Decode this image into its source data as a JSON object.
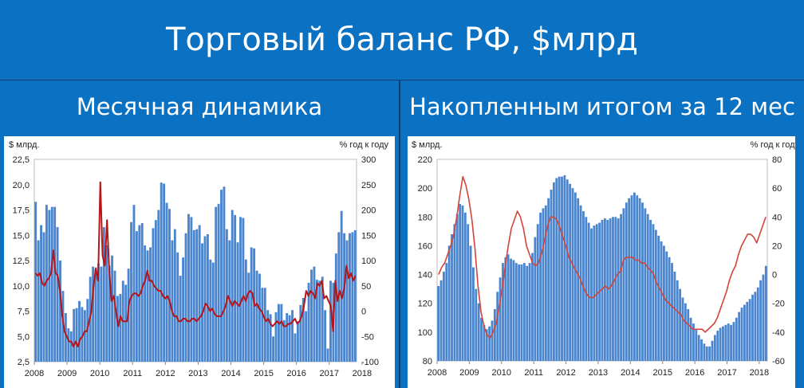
{
  "title": "Торговый баланс РФ, $млрд",
  "panels": [
    {
      "heading": "Месячная динамика"
    },
    {
      "heading": "Накопленным итогом за 12 мес"
    }
  ],
  "colors": {
    "banner": "#0b71c2",
    "bars": "#4a86cf",
    "line_left": "#b81417",
    "line_right": "#d3443a"
  },
  "chart_data": [
    {
      "type": "bar",
      "combo": "bar + line (secondary axis)",
      "left_unit": "$ млрд.",
      "right_unit": "% год к году",
      "y_ticks": [
        "22,5",
        "20,0",
        "17,5",
        "15,0",
        "12,5",
        "10,0",
        "7,5",
        "5,0",
        "2,5"
      ],
      "y2_ticks": [
        "300",
        "250",
        "200",
        "150",
        "100",
        "50",
        "0",
        "-50",
        "-100"
      ],
      "ylim": [
        2.5,
        22.5
      ],
      "y2lim": [
        -100,
        300
      ],
      "x_ticks": [
        "2008",
        "2009",
        "2010",
        "2011",
        "2012",
        "2013",
        "2014",
        "2015",
        "2016",
        "2017",
        "2018"
      ],
      "series": [
        {
          "kind": "bar",
          "values": [
            18.3,
            14.5,
            16.0,
            15.3,
            18.0,
            17.5,
            17.8,
            17.8,
            15.8,
            12.5,
            9.5,
            7.3,
            5.8,
            5.5,
            7.7,
            7.8,
            8.5,
            7.9,
            7.6,
            8.7,
            10.9,
            11.9,
            11.7,
            12.2,
            11.9,
            15.8,
            14.0,
            12.0,
            13.0,
            11.5,
            9.0,
            9.2,
            10.5,
            10.1,
            11.7,
            16.3,
            18.0,
            15.4,
            16.0,
            16.2,
            14.0,
            13.5,
            13.8,
            15.7,
            16.5,
            17.5,
            20.2,
            20.1,
            18.2,
            17.6,
            14.5,
            15.6,
            13.3,
            11.0,
            12.8,
            15.2,
            17.1,
            16.8,
            15.5,
            15.6,
            16.0,
            14.2,
            14.9,
            15.1,
            12.6,
            12.3,
            17.8,
            18.1,
            19.5,
            19.8,
            15.6,
            14.5,
            17.5,
            17.0,
            14.3,
            16.8,
            16.7,
            12.6,
            11.3,
            13.8,
            13.7,
            11.5,
            11.2,
            9.8,
            9.8,
            7.6,
            7.2,
            5.0,
            7.4,
            8.2,
            8.2,
            6.6,
            7.3,
            7.1,
            7.6,
            5.3,
            6.5,
            8.1,
            8.8,
            7.5,
            10.3,
            11.6,
            11.9,
            10.6,
            10.5,
            10.9,
            7.6,
            3.8,
            10.5,
            10.3,
            13.2,
            15.3,
            17.4,
            15.2,
            14.5,
            15.2,
            15.3,
            15.5
          ]
        },
        {
          "kind": "line",
          "axis": "right",
          "values": [
            75,
            70,
            75,
            55,
            50,
            60,
            65,
            75,
            120,
            75,
            70,
            40,
            -10,
            -40,
            -50,
            -60,
            -60,
            -70,
            -60,
            -70,
            -55,
            -50,
            -40,
            -40,
            -20,
            0,
            50,
            85,
            60,
            255,
            110,
            90,
            180,
            80,
            20,
            30,
            0,
            -30,
            -10,
            -20,
            -20,
            -20,
            20,
            30,
            35,
            35,
            30,
            35,
            50,
            60,
            80,
            60,
            60,
            50,
            45,
            40,
            40,
            30,
            25,
            30,
            20,
            0,
            -10,
            -10,
            -20,
            -20,
            -15,
            -15,
            -20,
            -20,
            -15,
            -15,
            -20,
            -15,
            -10,
            0,
            15,
            10,
            0,
            5,
            -5,
            -10,
            -10,
            -10,
            0,
            10,
            30,
            20,
            10,
            20,
            15,
            10,
            20,
            30,
            20,
            35,
            40,
            35,
            10,
            15,
            5,
            0,
            -10,
            -20,
            -15,
            -25,
            -30,
            -25,
            -20,
            -25,
            -20,
            -30,
            -30,
            -25,
            -25,
            -20,
            -15,
            -25,
            -20,
            -10,
            10,
            40,
            30,
            40,
            35,
            25,
            55,
            50,
            60,
            25,
            30,
            20,
            10,
            -40,
            60,
            20,
            40,
            25,
            45,
            90,
            65,
            75,
            60,
            70
          ]
        }
      ]
    },
    {
      "type": "bar",
      "combo": "bar + line (secondary axis)",
      "left_unit": "$ млрд.",
      "right_unit": "% год к году",
      "y_ticks": [
        "220",
        "200",
        "180",
        "160",
        "140",
        "120",
        "100",
        "80"
      ],
      "y2_ticks": [
        "80",
        "60",
        "40",
        "20",
        "0",
        "-20",
        "-40",
        "-60"
      ],
      "ylim": [
        80,
        220
      ],
      "y2lim": [
        -60,
        80
      ],
      "x_ticks": [
        "2008",
        "2009",
        "2010",
        "2011",
        "2012",
        "2013",
        "2014",
        "2015",
        "2016",
        "2017",
        "2018"
      ],
      "series": [
        {
          "kind": "bar",
          "values": [
            132,
            136,
            142,
            148,
            160,
            168,
            175,
            182,
            189,
            188,
            183,
            175,
            160,
            145,
            130,
            120,
            110,
            105,
            102,
            104,
            108,
            116,
            128,
            138,
            148,
            152,
            154,
            151,
            150,
            148,
            147,
            147,
            148,
            146,
            148,
            155,
            166,
            175,
            183,
            186,
            188,
            193,
            199,
            204,
            207,
            208,
            208,
            209,
            206,
            203,
            200,
            197,
            193,
            188,
            184,
            180,
            176,
            172,
            174,
            175,
            176,
            178,
            179,
            178,
            179,
            180,
            180,
            179,
            182,
            186,
            190,
            193,
            195,
            197,
            195,
            193,
            190,
            186,
            182,
            178,
            175,
            171,
            167,
            163,
            160,
            156,
            152,
            148,
            142,
            136,
            130,
            124,
            120,
            116,
            110,
            106,
            102,
            98,
            95,
            92,
            90,
            90,
            94,
            98,
            101,
            103,
            104,
            105,
            106,
            105,
            107,
            110,
            114,
            117,
            119,
            121,
            123,
            126,
            128,
            131,
            136,
            140,
            146
          ]
        },
        {
          "kind": "line",
          "axis": "right",
          "values": [
            0,
            5,
            8,
            14,
            20,
            28,
            40,
            55,
            68,
            62,
            52,
            38,
            18,
            -8,
            -26,
            -36,
            -42,
            -44,
            -40,
            -34,
            -22,
            -10,
            6,
            20,
            32,
            38,
            44,
            40,
            32,
            20,
            14,
            8,
            6,
            8,
            15,
            24,
            34,
            40,
            40,
            38,
            33,
            26,
            20,
            12,
            8,
            4,
            0,
            -4,
            -10,
            -14,
            -16,
            -16,
            -14,
            -12,
            -10,
            -8,
            -10,
            -8,
            -4,
            0,
            2,
            10,
            12,
            12,
            12,
            10,
            10,
            8,
            8,
            5,
            3,
            0,
            -6,
            -10,
            -14,
            -18,
            -20,
            -22,
            -24,
            -26,
            -28,
            -32,
            -34,
            -36,
            -38,
            -38,
            -38,
            -38,
            -40,
            -38,
            -36,
            -34,
            -30,
            -24,
            -18,
            -12,
            -4,
            2,
            6,
            14,
            20,
            24,
            28,
            28,
            26,
            22,
            28,
            34,
            40
          ]
        }
      ]
    }
  ]
}
